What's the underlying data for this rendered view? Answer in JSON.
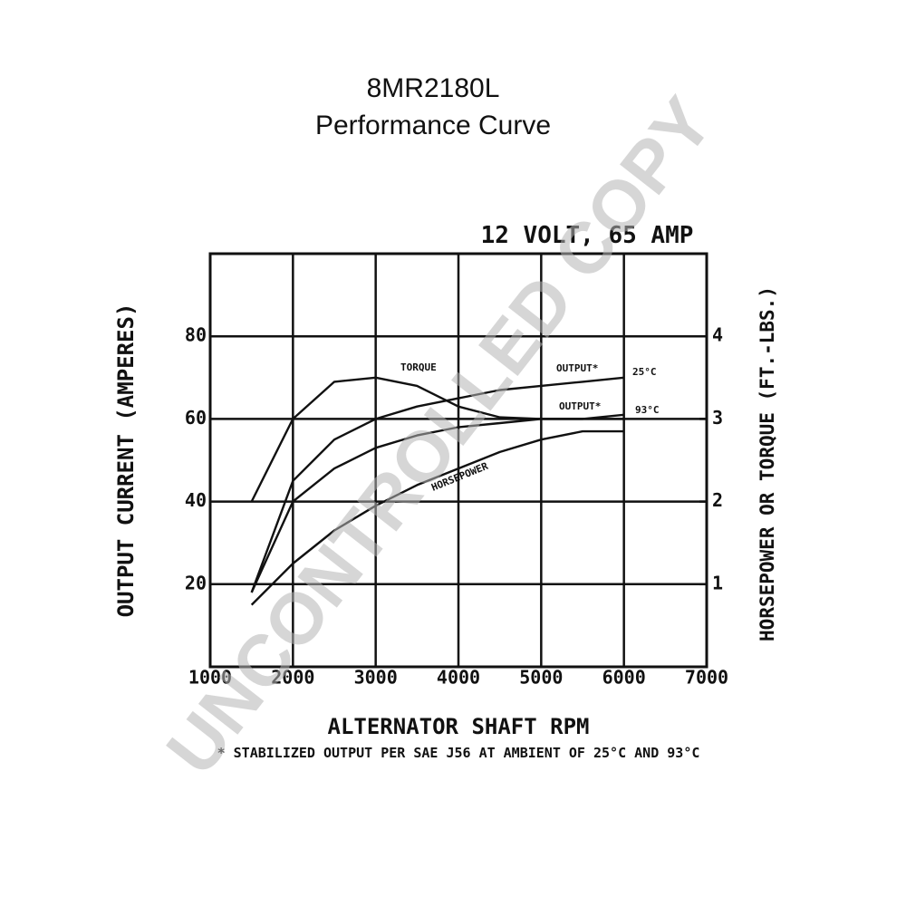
{
  "chart_data": {
    "type": "line",
    "title": "8MR2180L",
    "subtitle": "Performance Curve",
    "rating": "12 VOLT, 65 AMP",
    "x_label": "ALTERNATOR SHAFT RPM",
    "y_label": "OUTPUT CURRENT (AMPERES)",
    "y2_label": "HORSEPOWER OR TORQUE (FT.-LBS.)",
    "footnote": "* STABILIZED OUTPUT PER SAE J56 AT AMBIENT OF 25°C AND 93°C",
    "watermark": "UNCONTROLLED COPY",
    "xlim": [
      1000,
      7000
    ],
    "xticks": [
      1000,
      2000,
      3000,
      4000,
      5000,
      6000,
      7000
    ],
    "ylim": [
      0,
      100
    ],
    "yticks": [
      20,
      40,
      60,
      80
    ],
    "y2lim": [
      0,
      5
    ],
    "y2ticks": [
      1,
      2,
      3,
      4
    ],
    "grid": true,
    "x": [
      1500,
      2000,
      2500,
      3000,
      3500,
      4000,
      4500,
      5000,
      5500,
      6000
    ],
    "series": [
      {
        "name": "TORQUE",
        "color": "#111111",
        "axis": "y2",
        "values": [
          2.0,
          3.0,
          3.45,
          3.5,
          3.4,
          3.15,
          3.02,
          3.0,
          3.0,
          3.0
        ]
      },
      {
        "name": "OUTPUT*",
        "note": "25°C",
        "color": "#111111",
        "values": [
          18,
          45,
          55,
          60,
          63,
          65,
          67,
          68,
          69,
          70
        ]
      },
      {
        "name": "OUTPUT*",
        "note": "93°C",
        "color": "#111111",
        "values": [
          18,
          40,
          48,
          53,
          56,
          58,
          59,
          60,
          60,
          61
        ]
      },
      {
        "name": "HORSEPOWER",
        "color": "#111111",
        "axis": "y2",
        "values": [
          0.75,
          1.25,
          1.65,
          1.95,
          2.2,
          2.4,
          2.6,
          2.75,
          2.85,
          2.85
        ]
      }
    ]
  }
}
